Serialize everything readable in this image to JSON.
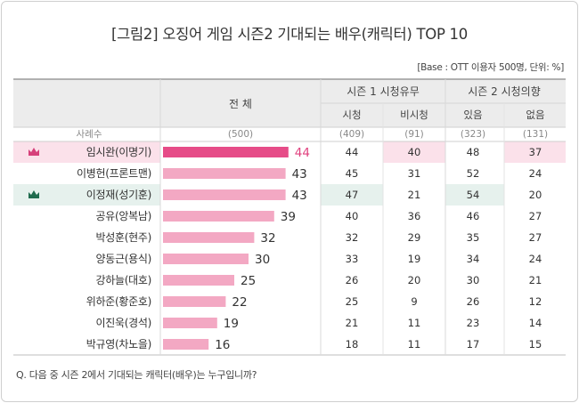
{
  "title": "[그림2] 오징어 게임 시즌2 기대되는 배우(캐릭터) TOP 10",
  "base_note": "[Base : OTT 이용자 500명, 단위: %]",
  "question": "Q. 다음 중 시즌 2에서 기대되는 캐릭터(배우)는 누구입니까?",
  "colors": {
    "highlight_pink": "#fbe1ea",
    "highlight_green": "#e6f1ed",
    "crown_pink": "#d6407a",
    "crown_green": "#1f6b4e",
    "bar_top": "#e64c88",
    "bar_normal": "#f3a8c3",
    "header_bg": "#ececec",
    "top_value_text": "#e0407e"
  },
  "table": {
    "col_total": "전 체",
    "group_s1": "시즌 1 시청유무",
    "group_s2": "시즌 2 시청의향",
    "sub_s1_yes": "시청",
    "sub_s1_no": "비시청",
    "sub_s2_yes": "있음",
    "sub_s2_no": "없음",
    "sample_label": "사례수",
    "sample_total": "(500)",
    "sample_s1_yes": "(409)",
    "sample_s1_no": "(91)",
    "sample_s2_yes": "(323)",
    "sample_s2_no": "(131)"
  },
  "chart_data": {
    "type": "bar",
    "title": "[그림2] 오징어 게임 시즌2 기대되는 배우(캐릭터) TOP 10",
    "unit": "%",
    "xlim": [
      0,
      50
    ],
    "categories": [
      "임시완(이명기)",
      "이병헌(프론트맨)",
      "이정재(성기훈)",
      "공유(앙복남)",
      "박성훈(현주)",
      "양동근(용식)",
      "강하늘(대호)",
      "위하준(황준호)",
      "이진욱(경석)",
      "박규영(차노을)"
    ],
    "values": [
      44,
      43,
      43,
      39,
      32,
      30,
      25,
      22,
      19,
      16
    ],
    "breakdown_columns": [
      "시청",
      "비시청",
      "있음",
      "없음"
    ],
    "breakdown": [
      [
        44,
        40,
        48,
        37
      ],
      [
        45,
        31,
        52,
        24
      ],
      [
        47,
        21,
        54,
        20
      ],
      [
        40,
        36,
        46,
        27
      ],
      [
        32,
        29,
        35,
        27
      ],
      [
        33,
        19,
        34,
        24
      ],
      [
        26,
        20,
        30,
        21
      ],
      [
        25,
        9,
        26,
        12
      ],
      [
        21,
        11,
        23,
        14
      ],
      [
        18,
        11,
        17,
        15
      ]
    ],
    "highlight_rows": [
      {
        "row": 0,
        "style": "pink",
        "cells": [
          1,
          3
        ]
      },
      {
        "row": 2,
        "style": "green",
        "cells": [
          0,
          2
        ]
      }
    ]
  }
}
